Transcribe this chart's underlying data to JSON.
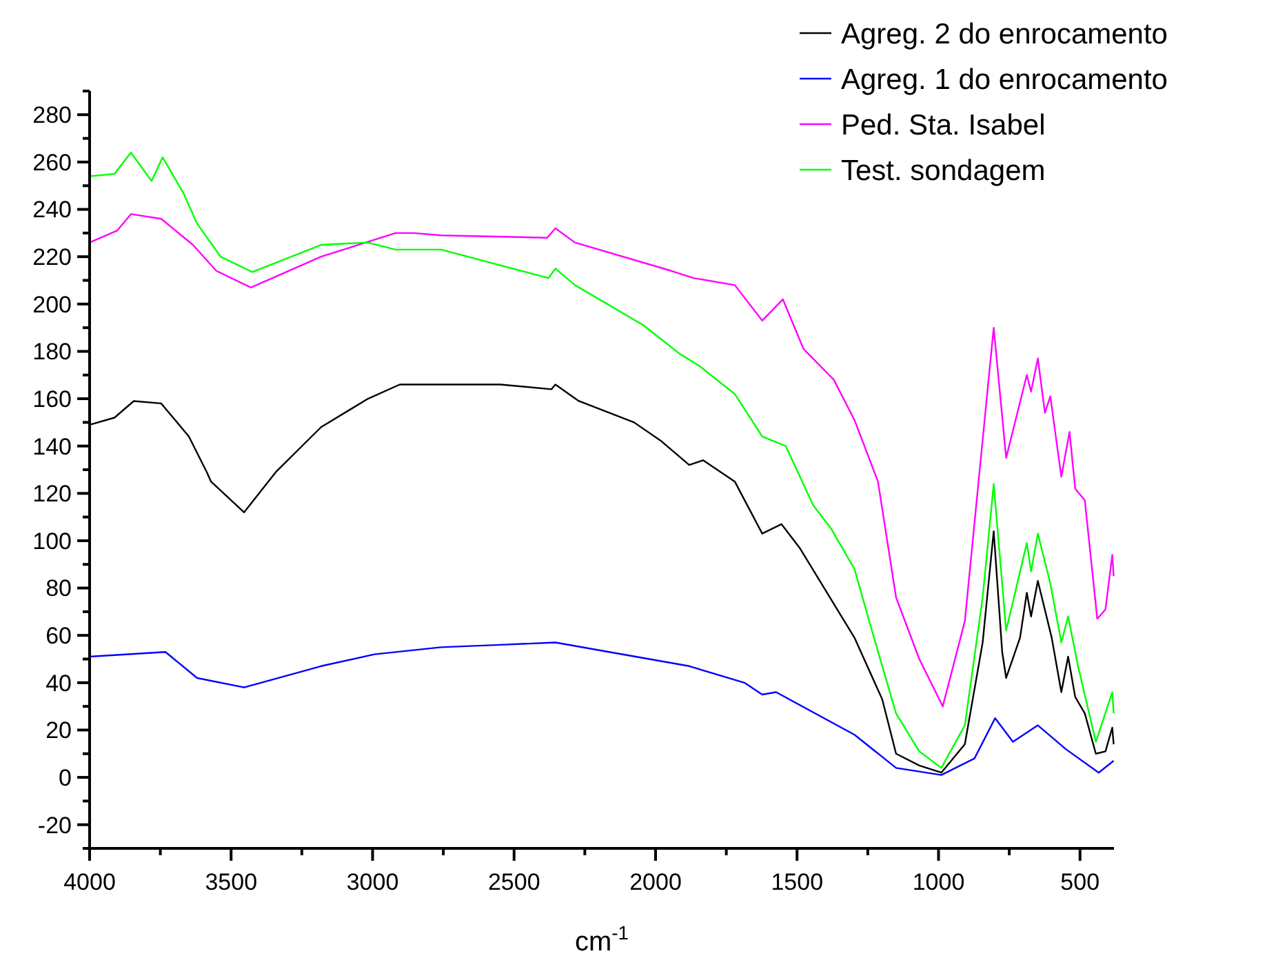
{
  "chart_data": {
    "type": "line",
    "xlabel": "cm$^{-1}$",
    "xlim": [
      4000,
      380
    ],
    "ylim": [
      -30,
      290
    ],
    "xticks": [
      4000,
      {
        "value": 3750,
        "label": null
      },
      3500,
      {
        "value": 3250,
        "label": null
      },
      3000,
      {
        "value": 2750,
        "label": null
      },
      2500,
      {
        "value": 2250,
        "label": null
      },
      2000,
      {
        "value": 1750,
        "label": null
      },
      1500,
      {
        "value": 1250,
        "label": null
      },
      1000,
      {
        "value": 750,
        "label": null
      },
      500
    ],
    "yticks": [
      {
        "value": -30,
        "label": null
      },
      -20,
      {
        "value": -10,
        "label": null
      },
      0,
      {
        "value": 10,
        "label": null
      },
      20,
      {
        "value": 30,
        "label": null
      },
      40,
      {
        "value": 50,
        "label": null
      },
      60,
      {
        "value": 70,
        "label": null
      },
      80,
      {
        "value": 90,
        "label": null
      },
      100,
      {
        "value": 110,
        "label": null
      },
      120,
      {
        "value": 130,
        "label": null
      },
      140,
      {
        "value": 150,
        "label": null
      },
      160,
      {
        "value": 170,
        "label": null
      },
      180,
      {
        "value": 190,
        "label": null
      },
      200,
      {
        "value": 210,
        "label": null
      },
      220,
      {
        "value": 230,
        "label": null
      },
      240,
      {
        "value": 250,
        "label": null
      },
      260,
      {
        "value": 270,
        "label": null
      },
      280,
      {
        "value": 290,
        "label": null
      }
    ],
    "grid": false,
    "legend": "top right",
    "line_style": "solid",
    "series": [
      {
        "name": "Agreg. 2 do enrocamento",
        "color": "#000000",
        "x": [
          4000,
          3912,
          3844,
          3747,
          3649,
          3586,
          3571,
          3454,
          3342,
          3182,
          3016,
          2904,
          2855,
          2548,
          2368,
          2354,
          2271,
          2076,
          1979,
          1881,
          1832,
          1720,
          1623,
          1555,
          1491,
          1394,
          1297,
          1199,
          1150,
          1068,
          990,
          907,
          844,
          805,
          775,
          761,
          712,
          688,
          673,
          649,
          600,
          566,
          542,
          517,
          483,
          444,
          410,
          386,
          381
        ],
        "values": [
          149,
          152,
          159,
          158,
          144,
          129,
          125,
          112,
          129,
          148,
          160,
          166,
          166,
          166,
          164,
          166,
          159,
          150,
          142,
          132,
          134,
          125,
          103,
          107,
          97,
          78,
          59,
          33,
          10,
          5,
          2,
          14,
          57,
          104,
          53,
          42,
          59,
          78,
          68,
          83,
          59,
          36,
          51,
          34,
          27,
          10,
          11,
          21,
          14
        ]
      },
      {
        "name": "Agreg. 1 do enrocamento",
        "color": "#0000ff",
        "x": [
          4000,
          3732,
          3620,
          3454,
          3182,
          2993,
          2758,
          2548,
          2354,
          1881,
          1686,
          1623,
          1574,
          1297,
          1150,
          990,
          873,
          800,
          737,
          649,
          551,
          434,
          381
        ],
        "values": [
          51,
          53,
          42,
          38,
          47,
          52,
          55,
          56,
          57,
          47,
          40,
          35,
          36,
          18,
          4,
          1,
          8,
          25,
          15,
          22,
          12,
          2,
          7
        ]
      },
      {
        "name": "Ped. Sta. Isabel",
        "color": "#ff00ff",
        "x": [
          4000,
          3903,
          3854,
          3747,
          3635,
          3552,
          3430,
          3182,
          2919,
          2855,
          2758,
          2383,
          2354,
          2285,
          1944,
          1866,
          1720,
          1623,
          1550,
          1477,
          1370,
          1297,
          1214,
          1150,
          1068,
          985,
          907,
          805,
          761,
          688,
          673,
          649,
          624,
          605,
          566,
          537,
          517,
          483,
          439,
          410,
          386,
          381
        ],
        "values": [
          226,
          231,
          238,
          236,
          225,
          214,
          207,
          220,
          230,
          230,
          229,
          228,
          232,
          226,
          214,
          211,
          208,
          193,
          202,
          181,
          168,
          151,
          125,
          76,
          50,
          30,
          66,
          190,
          135,
          170,
          163,
          177,
          154,
          161,
          127,
          146,
          122,
          117,
          67,
          71,
          94,
          85
        ]
      },
      {
        "name": "Test. sondagem",
        "color": "#00ff00",
        "x": [
          4000,
          3912,
          3854,
          3781,
          3742,
          3669,
          3620,
          3537,
          3425,
          3182,
          3016,
          2919,
          2758,
          2378,
          2354,
          2285,
          2042,
          1915,
          1847,
          1720,
          1623,
          1540,
          1443,
          1379,
          1297,
          1233,
          1150,
          1068,
          990,
          907,
          844,
          805,
          761,
          688,
          673,
          649,
          605,
          566,
          542,
          507,
          444,
          386,
          381
        ],
        "values": [
          254,
          255,
          264,
          252,
          262,
          247,
          234,
          220,
          213.5,
          225,
          226,
          223,
          223,
          211,
          215,
          208,
          191,
          179,
          174,
          162,
          144,
          140,
          115,
          105,
          88,
          61,
          27,
          11,
          4,
          22,
          76,
          124,
          62,
          99,
          87,
          103,
          82,
          57,
          68,
          47,
          15,
          36,
          27
        ]
      }
    ]
  }
}
